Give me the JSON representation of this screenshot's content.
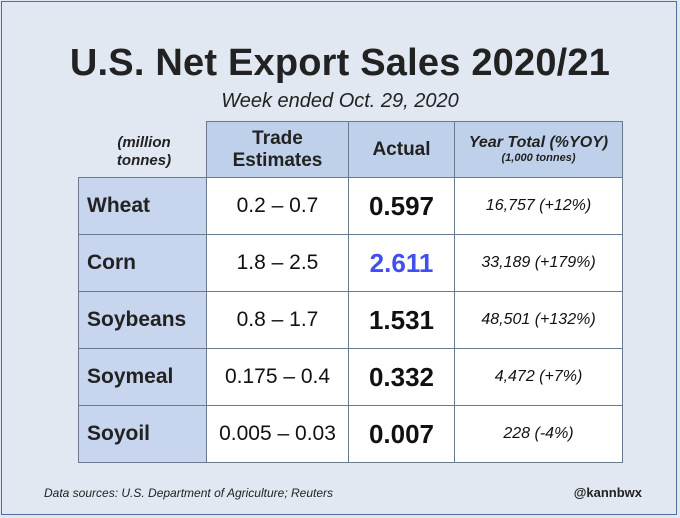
{
  "title": "U.S. Net Export Sales 2020/21",
  "subtitle": "Week ended Oct. 29, 2020",
  "chart_data": {
    "type": "table",
    "units_label": [
      "(million",
      "tonnes)"
    ],
    "columns": {
      "trade_estimates": [
        "Trade",
        "Estimates"
      ],
      "actual": "Actual",
      "year_total": "Year Total (%YOY)",
      "year_total_units": "(1,000 tonnes)"
    },
    "rows": [
      {
        "crop": "Wheat",
        "estimates": "0.2 – 0.7",
        "actual": "0.597",
        "year_total": "16,757 (+12%)",
        "highlight": false
      },
      {
        "crop": "Corn",
        "estimates": "1.8 – 2.5",
        "actual": "2.611",
        "year_total": "33,189 (+179%)",
        "highlight": true
      },
      {
        "crop": "Soybeans",
        "estimates": "0.8 – 1.7",
        "actual": "1.531",
        "year_total": "48,501 (+132%)",
        "highlight": false
      },
      {
        "crop": "Soymeal",
        "estimates": "0.175 – 0.4",
        "actual": "0.332",
        "year_total": "4,472 (+7%)",
        "highlight": false
      },
      {
        "crop": "Soyoil",
        "estimates": "0.005 – 0.03",
        "actual": "0.007",
        "year_total": "228 (-4%)",
        "highlight": false
      }
    ],
    "highlight_color": "#3f4ff0"
  },
  "footer": {
    "source": "Data sources: U.S. Department of Agriculture; Reuters",
    "handle": "@kannbwx"
  }
}
